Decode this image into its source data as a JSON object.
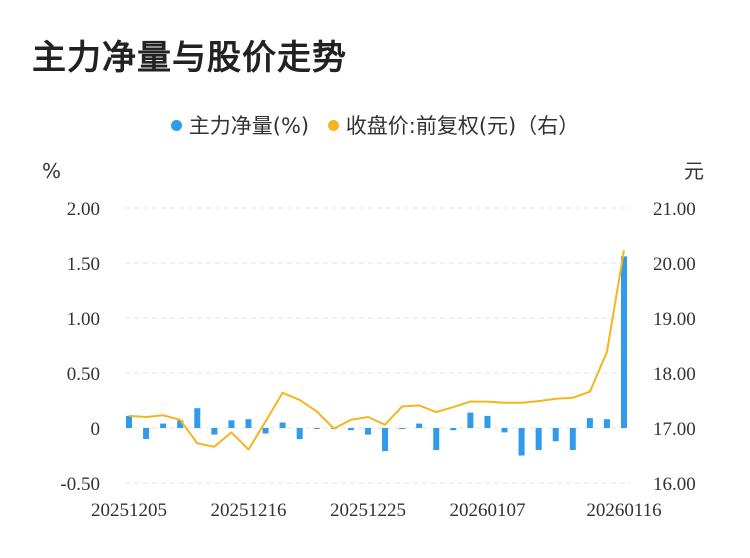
{
  "title": "主力净量与股价走势",
  "legend": {
    "bar_label": "主力净量(%)",
    "line_label": "收盘价:前复权(元)（右）"
  },
  "colors": {
    "bar": "#2f9bea",
    "line": "#f5b51d",
    "grid": "#e3e3e3"
  },
  "chart_data": {
    "type": "bar+line",
    "left_axis": {
      "unit": "%",
      "ticks": [
        "2.00",
        "1.50",
        "1.00",
        "0.50",
        "0",
        "-0.50"
      ],
      "range": [
        -0.5,
        2.0
      ]
    },
    "right_axis": {
      "unit": "元",
      "ticks": [
        "21.00",
        "20.00",
        "19.00",
        "18.00",
        "17.00",
        "16.00"
      ],
      "range": [
        16.0,
        21.0
      ]
    },
    "x_tick_labels": [
      "20251205",
      "20251216",
      "20251225",
      "20260107",
      "20260116"
    ],
    "x_tick_indices": [
      0,
      7,
      14,
      21,
      29
    ],
    "series": [
      {
        "name": "主力净量(%)",
        "kind": "bar",
        "axis": "left",
        "values": [
          0.11,
          -0.1,
          0.04,
          0.07,
          0.18,
          -0.06,
          0.07,
          0.08,
          -0.05,
          0.05,
          -0.1,
          0.0,
          0.0,
          -0.02,
          -0.06,
          -0.21,
          0.0,
          0.04,
          -0.2,
          -0.02,
          0.14,
          0.11,
          -0.04,
          -0.25,
          -0.2,
          -0.12,
          -0.2,
          0.09,
          0.08,
          1.56
        ]
      },
      {
        "name": "收盘价:前复权(元)（右）",
        "kind": "line",
        "axis": "right",
        "values": [
          17.22,
          17.2,
          17.23,
          17.15,
          16.72,
          16.66,
          16.92,
          16.61,
          17.12,
          17.64,
          17.51,
          17.3,
          16.99,
          17.15,
          17.2,
          17.06,
          17.39,
          17.41,
          17.29,
          17.38,
          17.48,
          17.48,
          17.46,
          17.46,
          17.49,
          17.53,
          17.55,
          17.66,
          18.38,
          20.23
        ]
      }
    ]
  }
}
